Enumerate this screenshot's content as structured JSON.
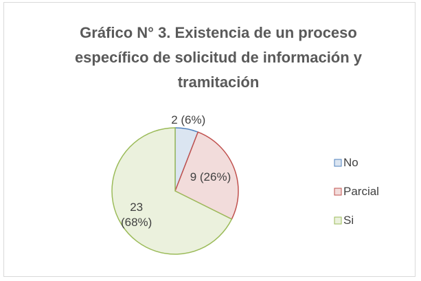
{
  "chart_data": {
    "type": "pie",
    "title": "Gráfico N° 3. Existencia de un proceso específico de solicitud de información y tramitación",
    "categories": [
      "No",
      "Parcial",
      "Si"
    ],
    "values": [
      2,
      9,
      23
    ],
    "value_labels": [
      "2 (6%)",
      "9 (26%)",
      "23 (68%)"
    ],
    "colors": [
      "#dbe5f1",
      "#f2dcdb",
      "#ebf1dd"
    ],
    "edge_colors": [
      "#4f81bd",
      "#c0504d",
      "#9bbb59"
    ],
    "legend": "right"
  }
}
